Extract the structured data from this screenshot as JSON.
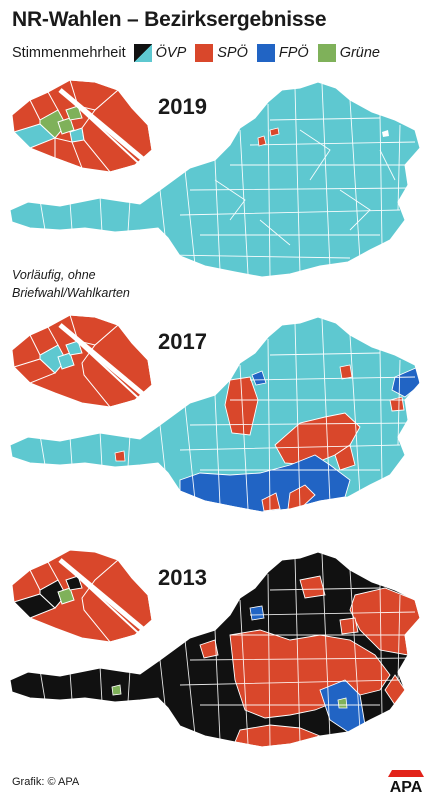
{
  "title": "NR-Wahlen – Bezirksergebnisse",
  "legend": {
    "label": "Stimmenmehrheit",
    "items": [
      {
        "name": "ÖVP",
        "color": "#5ec8d0",
        "color2": "#111111"
      },
      {
        "name": "SPÖ",
        "color": "#d9472b"
      },
      {
        "name": "FPÖ",
        "color": "#2164c4"
      },
      {
        "name": "Grüne",
        "color": "#7fb15a"
      }
    ]
  },
  "maps": [
    {
      "year": "2019",
      "base": "#5ec8d0",
      "vienna_base": "#d9472b",
      "regions": [
        "SPÖ hotspot Steyr",
        "SPÖ hotspot Linz",
        "SPÖ Schwechat",
        "Grüne Wien inner districts"
      ]
    },
    {
      "year": "2017",
      "base": "#5ec8d0",
      "vienna_base": "#d9472b",
      "regions": [
        "SPÖ Steiermark Ost",
        "FPÖ Kärnten",
        "FPÖ Burgenland Nord",
        "SPÖ Oberösterreich Süd"
      ]
    },
    {
      "year": "2013",
      "base": "#111111",
      "vienna_base": "#d9472b",
      "regions": [
        "SPÖ Steiermark",
        "SPÖ Niederösterreich Ost",
        "FPÖ Graz Süd",
        "Grüne Innsbruck"
      ]
    }
  ],
  "note": [
    "Vorläufig, ohne",
    "Briefwahl/Wahlkarten"
  ],
  "credit": "Grafik: © APA",
  "logo": "APA"
}
